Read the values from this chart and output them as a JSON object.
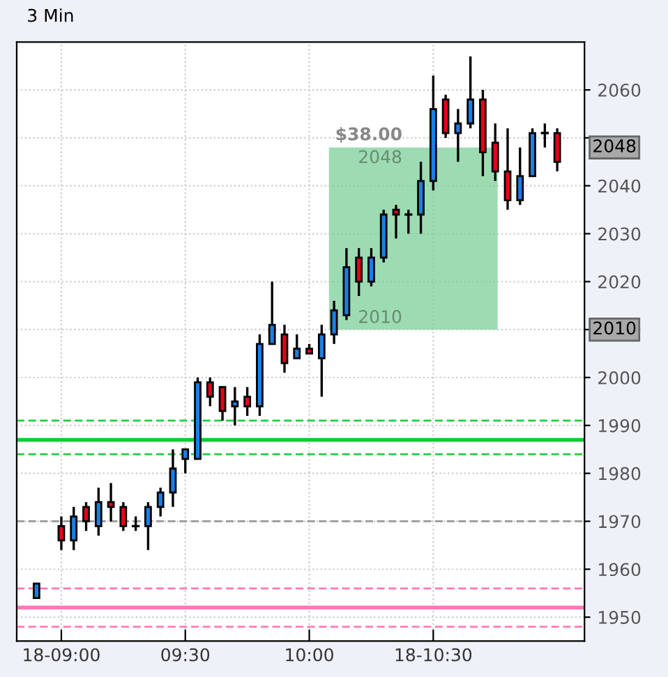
{
  "chart_data": {
    "type": "candlestick",
    "title": "3 Min",
    "x": [
      8.9,
      9.0,
      9.05,
      9.1,
      9.15,
      9.2,
      9.25,
      9.3,
      9.35,
      9.4,
      9.45,
      9.5,
      9.55,
      9.6,
      9.65,
      9.7,
      9.75,
      9.8,
      9.85,
      9.9,
      9.95,
      10.0,
      10.05,
      10.1,
      10.15,
      10.2,
      10.25,
      10.3,
      10.35,
      10.4,
      10.45,
      10.5,
      10.55,
      10.6,
      10.65,
      10.7,
      10.75,
      10.8,
      10.85,
      10.9,
      10.95,
      11.0
    ],
    "ohlc": [
      [
        1954,
        1957,
        1954,
        1957
      ],
      [
        1969,
        1971,
        1964,
        1966
      ],
      [
        1966,
        1973,
        1964,
        1971
      ],
      [
        1973,
        1974,
        1968,
        1970
      ],
      [
        1969,
        1977,
        1967,
        1974
      ],
      [
        1974,
        1978,
        1970,
        1973
      ],
      [
        1973,
        1974,
        1968,
        1969
      ],
      [
        1969,
        1971,
        1968,
        1969
      ],
      [
        1969,
        1974,
        1964,
        1973
      ],
      [
        1973,
        1977,
        1971,
        1976
      ],
      [
        1976,
        1985,
        1973,
        1981
      ],
      [
        1983,
        1985,
        1980,
        1985
      ],
      [
        1983,
        2000,
        1983,
        1999
      ],
      [
        1999,
        2000,
        1994,
        1996
      ],
      [
        1998,
        1998,
        1991,
        1993
      ],
      [
        1994,
        1998,
        1990,
        1995
      ],
      [
        1996,
        1998,
        1992,
        1994
      ],
      [
        1994,
        2009,
        1992,
        2007
      ],
      [
        2007,
        2020,
        2007,
        2011
      ],
      [
        2009,
        2011,
        2001,
        2003
      ],
      [
        2004,
        2009,
        2004,
        2006
      ],
      [
        2006,
        2007,
        2005,
        2005
      ],
      [
        2004,
        2011,
        1996,
        2009
      ],
      [
        2009,
        2016,
        2007,
        2014
      ],
      [
        2013,
        2027,
        2012,
        2023
      ],
      [
        2025,
        2027,
        2017,
        2020
      ],
      [
        2020,
        2027,
        2019,
        2025
      ],
      [
        2025,
        2035,
        2024,
        2034
      ],
      [
        2035,
        2036,
        2029,
        2034
      ],
      [
        2034,
        2035,
        2030,
        2034
      ],
      [
        2034,
        2045,
        2030,
        2041
      ],
      [
        2041,
        2063,
        2039,
        2056
      ],
      [
        2058,
        2059,
        2050,
        2051
      ],
      [
        2051,
        2056,
        2045,
        2053
      ],
      [
        2053,
        2067,
        2052,
        2058
      ],
      [
        2058,
        2060,
        2042,
        2047
      ],
      [
        2049,
        2053,
        2041,
        2043
      ],
      [
        2043,
        2052,
        2035,
        2037
      ],
      [
        2037,
        2048,
        2036,
        2042
      ],
      [
        2042,
        2052,
        2042,
        2051
      ],
      [
        2051,
        2053,
        2048,
        2051
      ],
      [
        2051,
        2052,
        2043,
        2045
      ]
    ],
    "colors": [
      "#1a7fe6",
      "#e8001c",
      "#1a7fe6",
      "#e8001c",
      "#1a7fe6",
      "#e8001c",
      "#e8001c",
      "#000000",
      "#1a7fe6",
      "#1a7fe6",
      "#1a7fe6",
      "#1a7fe6",
      "#1a7fe6",
      "#e8001c",
      "#e8001c",
      "#1a7fe6",
      "#e8001c",
      "#1a7fe6",
      "#1a7fe6",
      "#e8001c",
      "#1a7fe6",
      "#e8001c",
      "#1a7fe6",
      "#1a7fe6",
      "#1a7fe6",
      "#e8001c",
      "#1a7fe6",
      "#1a7fe6",
      "#e8001c",
      "#000000",
      "#1a7fe6",
      "#1a7fe6",
      "#e8001c",
      "#1a7fe6",
      "#1a7fe6",
      "#e8001c",
      "#e8001c",
      "#e8001c",
      "#1a7fe6",
      "#1a7fe6",
      "#000000",
      "#e8001c"
    ],
    "xlim": [
      8.82,
      11.11
    ],
    "xticks": [
      {
        "value": 9.0,
        "label": "18-09:00"
      },
      {
        "value": 9.5,
        "label": "09:30"
      },
      {
        "value": 10.0,
        "label": "10:00"
      },
      {
        "value": 10.5,
        "label": "18-10:30"
      }
    ],
    "ylim": [
      1945,
      2070
    ],
    "yticks": [
      1950,
      1960,
      1970,
      1980,
      1990,
      2000,
      2010,
      2020,
      2030,
      2040,
      {
        "value": 2050,
        "label": null
      },
      2060
    ],
    "grid": true,
    "ref_lines": [
      {
        "axis": "y",
        "value": 1991,
        "color": "#22cc44",
        "line_style": "dashed"
      },
      {
        "axis": "y",
        "value": 1987,
        "color": "#11cc33",
        "line_style": "solid"
      },
      {
        "axis": "y",
        "value": 1984,
        "color": "#22cc44",
        "line_style": "dashed"
      },
      {
        "axis": "y",
        "value": 1970,
        "color": "#999999",
        "line_style": "dashed"
      },
      {
        "axis": "y",
        "value": 1956,
        "color": "#ff77bb",
        "line_style": "dashed"
      },
      {
        "axis": "y",
        "value": 1952,
        "color": "#ff77bb",
        "line_style": "solid"
      },
      {
        "axis": "y",
        "value": 1948,
        "color": "#ff77bb",
        "line_style": "dashed"
      }
    ],
    "annotations": [
      "$38.00",
      "2048",
      "2010",
      "2048",
      "2010"
    ]
  }
}
